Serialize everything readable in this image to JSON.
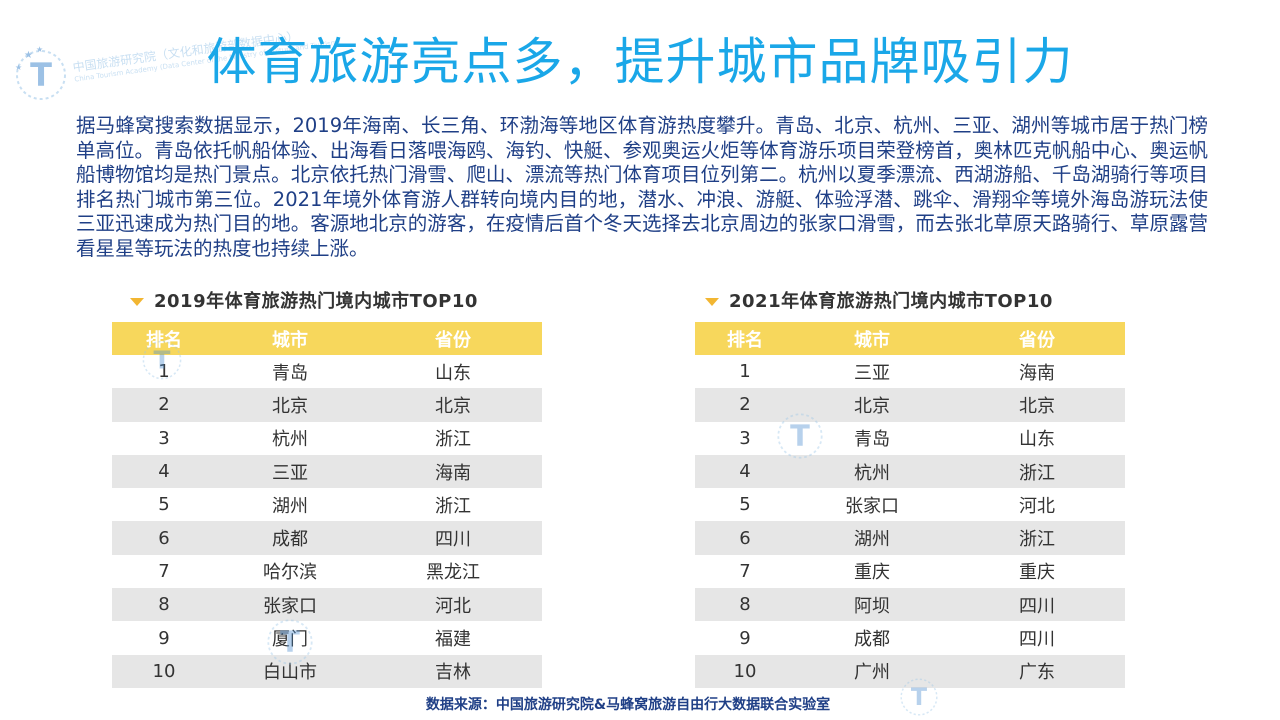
{
  "header": {
    "logo_text": "中国旅游研究院（文化和旅游部数据中心）",
    "logo_subtext": "China Tourism Academy (Data Center of the Ministry of Culture and Tourism)",
    "title": "体育旅游亮点多，提升城市品牌吸引力"
  },
  "intro": {
    "text": "据马蜂窝搜索数据显示，2019年海南、长三角、环渤海等地区体育游热度攀升。青岛、北京、杭州、三亚、湖州等城市居于热门榜单高位。青岛依托帆船体验、出海看日落喂海鸥、海钓、快艇、参观奥运火炬等体育游乐项目荣登榜首，奥林匹克帆船中心、奥运帆船博物馆均是热门景点。北京依托热门滑雪、爬山、漂流等热门体育项目位列第二。杭州以夏季漂流、西湖游船、千岛湖骑行等项目排名热门城市第三位。2021年境外体育游人群转向境内目的地，潜水、冲浪、游艇、体验浮潜、跳伞、滑翔伞等境外海岛游玩法使三亚迅速成为热门目的地。客源地北京的游客，在疫情后首个冬天选择去北京周边的张家口滑雪，而去张北草原天路骑行、草原露营看星星等玩法的热度也持续上涨。"
  },
  "colors": {
    "title": "#1aa7e8",
    "text": "#1f3f86",
    "table_header": "#f7d75c",
    "row_alt": "#e6e6e6",
    "triangle": "#f2b632"
  },
  "table_2019": {
    "title": "2019年体育旅游热门境内城市TOP10",
    "headers": [
      "排名",
      "城市",
      "省份"
    ],
    "rows": [
      [
        "1",
        "青岛",
        "山东"
      ],
      [
        "2",
        "北京",
        "北京"
      ],
      [
        "3",
        "杭州",
        "浙江"
      ],
      [
        "4",
        "三亚",
        "海南"
      ],
      [
        "5",
        "湖州",
        "浙江"
      ],
      [
        "6",
        "成都",
        "四川"
      ],
      [
        "7",
        "哈尔滨",
        "黑龙江"
      ],
      [
        "8",
        "张家口",
        "河北"
      ],
      [
        "9",
        "厦门",
        "福建"
      ],
      [
        "10",
        "白山市",
        "吉林"
      ]
    ]
  },
  "table_2021": {
    "title": "2021年体育旅游热门境内城市TOP10",
    "headers": [
      "排名",
      "城市",
      "省份"
    ],
    "rows": [
      [
        "1",
        "三亚",
        "海南"
      ],
      [
        "2",
        "北京",
        "北京"
      ],
      [
        "3",
        "青岛",
        "山东"
      ],
      [
        "4",
        "杭州",
        "浙江"
      ],
      [
        "5",
        "张家口",
        "河北"
      ],
      [
        "6",
        "湖州",
        "浙江"
      ],
      [
        "7",
        "重庆",
        "重庆"
      ],
      [
        "8",
        "阿坝",
        "四川"
      ],
      [
        "9",
        "成都",
        "四川"
      ],
      [
        "10",
        "广州",
        "广东"
      ]
    ]
  },
  "footer": {
    "source": "数据来源：中国旅游研究院&马蜂窝旅游自由行大数据联合实验室"
  }
}
